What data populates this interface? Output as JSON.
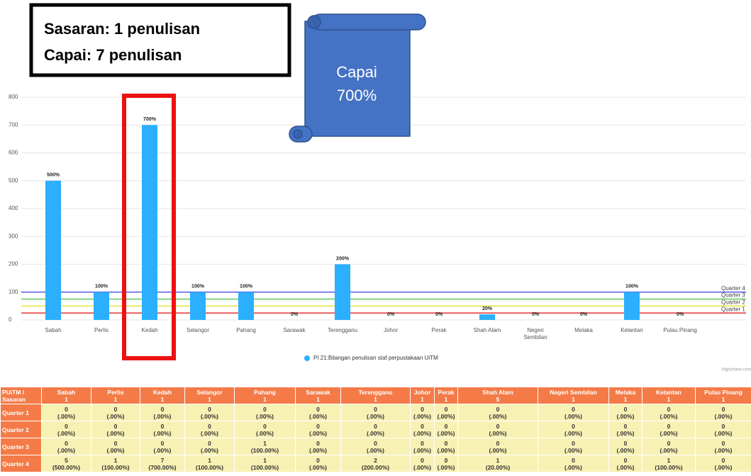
{
  "callout": {
    "lines": [
      "Sasaran: 1 penulisan",
      "Capai: 7 penulisan"
    ]
  },
  "scroll": {
    "lines": [
      "Capai",
      "700%"
    ]
  },
  "chart_data": {
    "type": "bar",
    "categories": [
      "Sabah",
      "Perlis",
      "Kedah",
      "Selangor",
      "Pahang",
      "Sarawak",
      "Terengganu",
      "Johor",
      "Perak",
      "Shah Alam",
      "Negeri Sembilan",
      "Melaka",
      "Kelantan",
      "Pulau Pinang"
    ],
    "series": [
      {
        "name": "PI 21:Bilangan penulisan staf perpustakaan UiTM",
        "color": "#2caffe",
        "values": [
          500,
          100,
          700,
          100,
          100,
          0,
          200,
          0,
          0,
          20,
          0,
          0,
          100,
          0
        ],
        "value_labels": [
          "500%",
          "100%",
          "700%",
          "100%",
          "100%",
          "0%",
          "200%",
          "0%",
          "0%",
          "20%",
          "0%",
          "0%",
          "100%",
          "0%"
        ]
      }
    ],
    "ylim": [
      0,
      800
    ],
    "yticks": [
      0,
      100,
      200,
      300,
      400,
      500,
      600,
      700,
      800
    ],
    "grid": true,
    "plot_lines": [
      {
        "label": "Quarter 4",
        "value": 100,
        "color": "#5a5ae6"
      },
      {
        "label": "Quarter 3",
        "value": 75,
        "color": "#5cc85c"
      },
      {
        "label": "Quarter 2",
        "value": 50,
        "color": "#e6e040"
      },
      {
        "label": "Quarter 1",
        "value": 25,
        "color": "#e63232"
      }
    ],
    "credit": "Highcharts.com"
  },
  "table": {
    "corner": "PUiTM / Sasaran",
    "columns": [
      {
        "name": "Sabah",
        "target": 1
      },
      {
        "name": "Perlis",
        "target": 1
      },
      {
        "name": "Kedah",
        "target": 1
      },
      {
        "name": "Selangor",
        "target": 1
      },
      {
        "name": "Pahang",
        "target": 1
      },
      {
        "name": "Sarawak",
        "target": 1
      },
      {
        "name": "Terengganu",
        "target": 1
      },
      {
        "name": "Johor",
        "target": 1
      },
      {
        "name": "Perak",
        "target": 1
      },
      {
        "name": "Shah Alam",
        "target": 5
      },
      {
        "name": "Negeri Sembilan",
        "target": 1
      },
      {
        "name": "Melaka",
        "target": 1
      },
      {
        "name": "Kelantan",
        "target": 1
      },
      {
        "name": "Pulau Pinang",
        "target": 1
      }
    ],
    "rows": [
      {
        "label": "Quarter 1",
        "cells": [
          {
            "count": 0,
            "pct": "(.00%)"
          },
          {
            "count": 0,
            "pct": "(.00%)"
          },
          {
            "count": 0,
            "pct": "(.00%)"
          },
          {
            "count": 0,
            "pct": "(.00%)"
          },
          {
            "count": 0,
            "pct": "(.00%)"
          },
          {
            "count": 0,
            "pct": "(.00%)"
          },
          {
            "count": 0,
            "pct": "(.00%)"
          },
          {
            "count": 0,
            "pct": "(.00%)"
          },
          {
            "count": 0,
            "pct": "(.00%)"
          },
          {
            "count": 0,
            "pct": "(.00%)"
          },
          {
            "count": 0,
            "pct": "(.00%)"
          },
          {
            "count": 0,
            "pct": "(.00%)"
          },
          {
            "count": 0,
            "pct": "(.00%)"
          },
          {
            "count": 0,
            "pct": "(.00%)"
          }
        ]
      },
      {
        "label": "Quarter 2",
        "cells": [
          {
            "count": 0,
            "pct": "(.00%)"
          },
          {
            "count": 0,
            "pct": "(.00%)"
          },
          {
            "count": 0,
            "pct": "(.00%)"
          },
          {
            "count": 0,
            "pct": "(.00%)"
          },
          {
            "count": 0,
            "pct": "(.00%)"
          },
          {
            "count": 0,
            "pct": "(.00%)"
          },
          {
            "count": 0,
            "pct": "(.00%)"
          },
          {
            "count": 0,
            "pct": "(.00%)"
          },
          {
            "count": 0,
            "pct": "(.00%)"
          },
          {
            "count": 0,
            "pct": "(.00%)"
          },
          {
            "count": 0,
            "pct": "(.00%)"
          },
          {
            "count": 0,
            "pct": "(.00%)"
          },
          {
            "count": 0,
            "pct": "(.00%)"
          },
          {
            "count": 0,
            "pct": "(.00%)"
          }
        ]
      },
      {
        "label": "Quarter 3",
        "cells": [
          {
            "count": 0,
            "pct": "(.00%)"
          },
          {
            "count": 0,
            "pct": "(.00%)"
          },
          {
            "count": 0,
            "pct": "(.00%)"
          },
          {
            "count": 0,
            "pct": "(.00%)"
          },
          {
            "count": 1,
            "pct": "(100.00%)"
          },
          {
            "count": 0,
            "pct": "(.00%)"
          },
          {
            "count": 0,
            "pct": "(.00%)"
          },
          {
            "count": 0,
            "pct": "(.00%)"
          },
          {
            "count": 0,
            "pct": "(.00%)"
          },
          {
            "count": 0,
            "pct": "(.00%)"
          },
          {
            "count": 0,
            "pct": "(.00%)"
          },
          {
            "count": 0,
            "pct": "(.00%)"
          },
          {
            "count": 0,
            "pct": "(.00%)"
          },
          {
            "count": 0,
            "pct": "(.00%)"
          }
        ]
      },
      {
        "label": "Quarter 4",
        "cells": [
          {
            "count": 5,
            "pct": "(500.00%)"
          },
          {
            "count": 1,
            "pct": "(100.00%)"
          },
          {
            "count": 7,
            "pct": "(700.00%)"
          },
          {
            "count": 1,
            "pct": "(100.00%)"
          },
          {
            "count": 1,
            "pct": "(100.00%)"
          },
          {
            "count": 0,
            "pct": "(.00%)"
          },
          {
            "count": 2,
            "pct": "(200.00%)"
          },
          {
            "count": 0,
            "pct": "(.00%)"
          },
          {
            "count": 0,
            "pct": "(.00%)"
          },
          {
            "count": 1,
            "pct": "(20.00%)"
          },
          {
            "count": 0,
            "pct": "(.00%)"
          },
          {
            "count": 0,
            "pct": "(.00%)"
          },
          {
            "count": 1,
            "pct": "(100.00%)"
          },
          {
            "count": 0,
            "pct": "(.00%)"
          }
        ]
      }
    ]
  }
}
